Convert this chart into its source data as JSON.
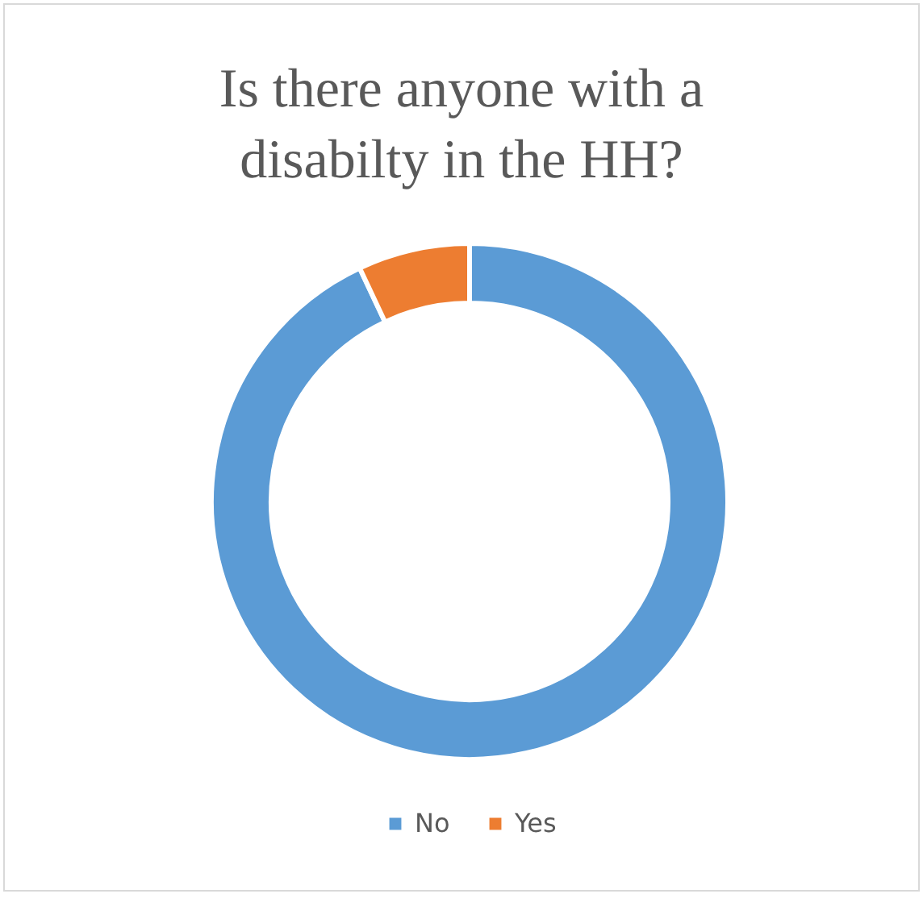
{
  "chart_data": {
    "type": "donut",
    "title": "Is there anyone with a disabilty in the HH?",
    "categories": [
      "No",
      "Yes"
    ],
    "values": [
      93,
      7
    ],
    "colors": [
      "#5b9bd5",
      "#ed7d31"
    ],
    "legend": "bottom"
  }
}
